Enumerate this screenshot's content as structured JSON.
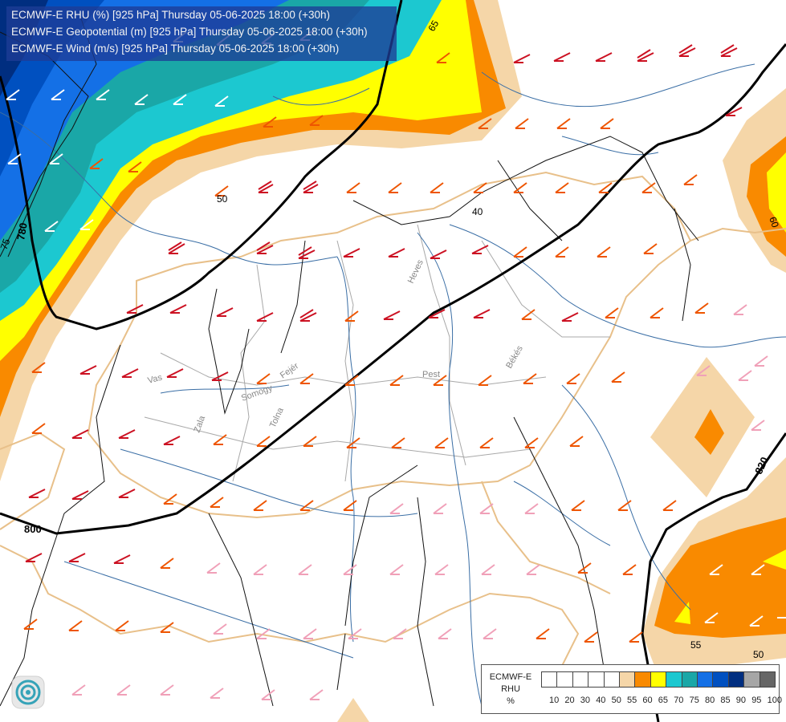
{
  "header": {
    "line1": "ECMWF-E RHU (%) [925 hPa] Thursday 05-06-2025 18:00 (+30h)",
    "line2": "ECMWF-E Geopotential (m) [925 hPa] Thursday 05-06-2025 18:00 (+30h)",
    "line3": "ECMWF-E Wind (m/s) [925 hPa] Thursday 05-06-2025 18:00 (+30h)"
  },
  "contour_labels": {
    "geo_780": "780",
    "geo_800": "800",
    "geo_820": "820",
    "rhu_50a": "50",
    "rhu_40": "40",
    "rhu_65": "65",
    "rhu_75": "75",
    "rhu_60": "60",
    "rhu_55": "55",
    "rhu_50b": "50"
  },
  "place_labels": {
    "vas": "Vas",
    "zala": "Zala",
    "somogy": "Somogy",
    "tolna": "Tolna",
    "fejer": "Fejér",
    "pest": "Pest",
    "bekes": "Békés",
    "heves": "Heves"
  },
  "legend": {
    "title1": "ECMWF-E",
    "title2": "RHU",
    "unit": "%",
    "colors": [
      "#ffffff",
      "#ffffff",
      "#ffffff",
      "#ffffff",
      "#ffffff",
      "#f5d6a8",
      "#f98a00",
      "#ffff00",
      "#1cc8d0",
      "#1aa7a7",
      "#1470e6",
      "#0050c0",
      "#002e80",
      "#a6a6a6",
      "#666666"
    ],
    "ticks": [
      "10",
      "20",
      "30",
      "40",
      "50",
      "55",
      "60",
      "65",
      "70",
      "75",
      "80",
      "85",
      "90",
      "95",
      "100"
    ]
  },
  "colors": {
    "rh_50": "#f5d6a8",
    "rh_55": "#f98a00",
    "rh_60": "#ffff00",
    "rh_65": "#1cc8d0",
    "rh_70": "#1aa7a7",
    "rh_75": "#1470e6",
    "rh_80": "#0050c0",
    "header_bg": "#1e3c96",
    "wind_strong": "#cc1122",
    "wind_mid": "#ee5500",
    "wind_weak": "#f0a0b8",
    "border": "#e8c08a",
    "river": "#3a6ea5"
  },
  "icons": {
    "logo": "ecmwf-swirl-logo-icon"
  }
}
